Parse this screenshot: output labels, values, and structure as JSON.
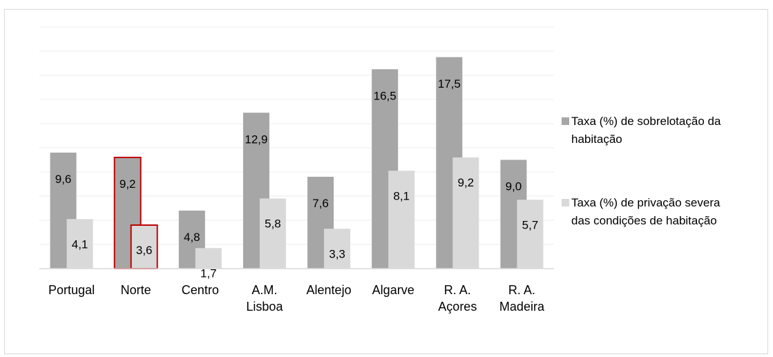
{
  "chart_data": {
    "type": "bar",
    "categories": [
      "Portugal",
      "Norte",
      "Centro",
      "A.M. Lisboa",
      "Alentejo",
      "Algarve",
      "R. A. Açores",
      "R. A. Madeira"
    ],
    "category_lines": [
      [
        "Portugal"
      ],
      [
        "Norte"
      ],
      [
        "Centro"
      ],
      [
        "A.M.",
        "Lisboa"
      ],
      [
        "Alentejo"
      ],
      [
        "Algarve"
      ],
      [
        "R. A.",
        "Açores"
      ],
      [
        "R. A.",
        "Madeira"
      ]
    ],
    "series": [
      {
        "name": "Taxa (%) de sobrelotação da habitação",
        "legend_lines": [
          "Taxa (%) de sobrelotação da",
          "habitação"
        ],
        "color": "#a6a6a6",
        "values": [
          9.6,
          9.2,
          4.8,
          12.9,
          7.6,
          16.5,
          17.5,
          9.0
        ],
        "labels": [
          "9,6",
          "9,2",
          "4,8",
          "12,9",
          "7,6",
          "16,5",
          "17,5",
          "9,0"
        ]
      },
      {
        "name": "Taxa (%) de privação severa das condições de habitação",
        "legend_lines": [
          "Taxa (%) de privação severa",
          "das condições de habitação"
        ],
        "color": "#d9d9d9",
        "values": [
          4.1,
          3.6,
          1.7,
          5.8,
          3.3,
          8.1,
          9.2,
          5.7
        ],
        "labels": [
          "4,1",
          "3,6",
          "1,7",
          "5,8",
          "3,3",
          "8,1",
          "9,2",
          "5,7"
        ]
      }
    ],
    "highlight_category": "Norte",
    "highlight_color": "#c00000",
    "ylim": [
      0,
      20
    ],
    "gridlines": true,
    "legend_position": "right",
    "title": "",
    "xlabel": "",
    "ylabel": ""
  }
}
